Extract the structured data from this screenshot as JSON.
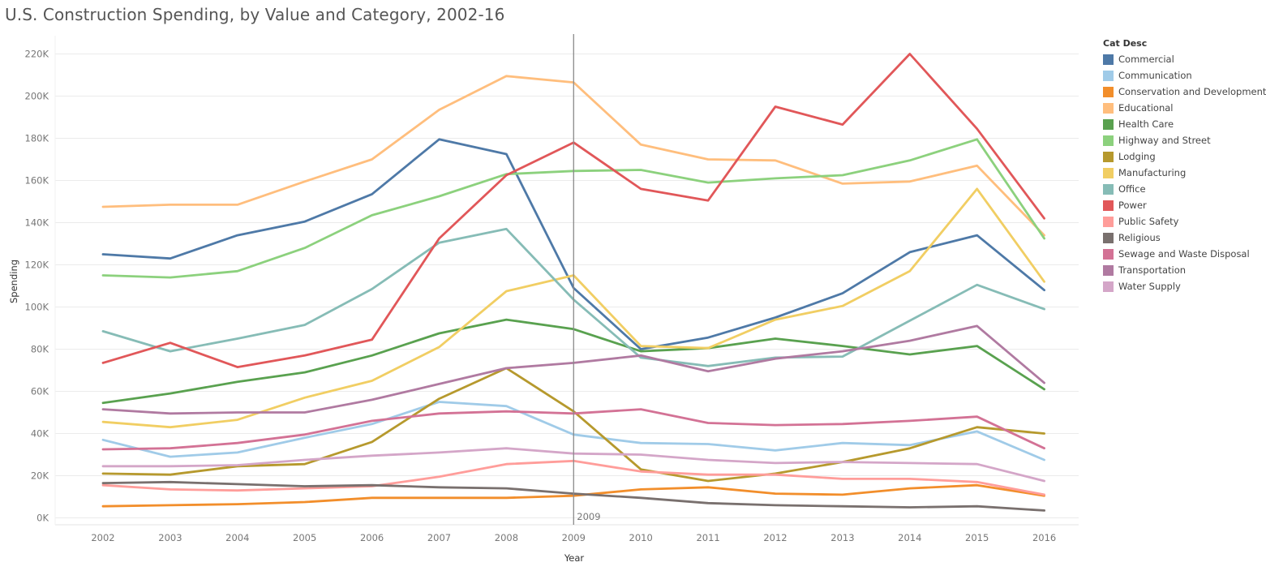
{
  "chart_data": {
    "type": "line",
    "title": "U.S. Construction Spending, by Value and Category, 2002-16",
    "xlabel": "Year",
    "ylabel": "Spending",
    "ylim": [
      0,
      230000
    ],
    "yticks": [
      0,
      20000,
      40000,
      60000,
      80000,
      100000,
      120000,
      140000,
      160000,
      180000,
      200000,
      220000
    ],
    "ytick_labels": [
      "0K",
      "20K",
      "40K",
      "60K",
      "80K",
      "100K",
      "120K",
      "140K",
      "160K",
      "180K",
      "200K",
      "220K"
    ],
    "x": [
      "2002",
      "2003",
      "2004",
      "2005",
      "2006",
      "2007",
      "2008",
      "2009",
      "2010",
      "2011",
      "2012",
      "2013",
      "2014",
      "2015",
      "2016"
    ],
    "grid": "horizontal",
    "legend_title": "Cat Desc",
    "legend_position": "right",
    "annotation": {
      "x": "2009",
      "label": "2009"
    },
    "series": [
      {
        "name": "Commercial",
        "color": "#4e79a7",
        "values": [
          125000,
          123000,
          134000,
          140500,
          153500,
          179500,
          172500,
          109000,
          80000,
          85500,
          95000,
          106500,
          126000,
          134000,
          108000
        ]
      },
      {
        "name": "Communication",
        "color": "#a0cbe8",
        "values": [
          37000,
          29000,
          31000,
          38000,
          44500,
          55000,
          53000,
          39500,
          35500,
          35000,
          32000,
          35500,
          34500,
          41000,
          27500
        ]
      },
      {
        "name": "Conservation and Development",
        "color": "#f28e2b",
        "values": [
          5500,
          6000,
          6500,
          7500,
          9500,
          9500,
          9500,
          10500,
          13500,
          14500,
          11500,
          11000,
          14000,
          15500,
          10500
        ]
      },
      {
        "name": "Educational",
        "color": "#ffbe7d",
        "values": [
          147500,
          148500,
          148500,
          159500,
          170000,
          193500,
          209500,
          206500,
          177000,
          170000,
          169500,
          158500,
          159500,
          167000,
          134000
        ]
      },
      {
        "name": "Health Care",
        "color": "#59a14f",
        "values": [
          54500,
          59000,
          64500,
          69000,
          77000,
          87500,
          94000,
          89500,
          79000,
          80500,
          85000,
          81500,
          77500,
          81500,
          61000
        ]
      },
      {
        "name": "Highway and Street",
        "color": "#8cd17d",
        "values": [
          115000,
          114000,
          117000,
          128000,
          143500,
          152500,
          163000,
          164500,
          165000,
          159000,
          161000,
          162500,
          169500,
          179500,
          132500
        ]
      },
      {
        "name": "Lodging",
        "color": "#b6992d",
        "values": [
          21000,
          20500,
          24500,
          25500,
          36000,
          56500,
          71000,
          50500,
          23000,
          17500,
          21000,
          26500,
          33000,
          43000,
          40000
        ]
      },
      {
        "name": "Manufacturing",
        "color": "#f1ce63",
        "values": [
          45500,
          43000,
          46500,
          57000,
          65000,
          81000,
          107500,
          115000,
          81500,
          80500,
          94000,
          100500,
          117000,
          156000,
          112000
        ]
      },
      {
        "name": "Office",
        "color": "#86bcb6",
        "values": [
          88500,
          79000,
          85000,
          91500,
          108500,
          130500,
          137000,
          103500,
          76000,
          72000,
          76000,
          76500,
          93500,
          110500,
          99000
        ]
      },
      {
        "name": "Power",
        "color": "#e15759",
        "values": [
          73500,
          83000,
          71500,
          77000,
          84500,
          132500,
          162500,
          178000,
          156000,
          150500,
          195000,
          186500,
          220000,
          184500,
          142000
        ]
      },
      {
        "name": "Public Safety",
        "color": "#ff9d9a",
        "values": [
          15500,
          13500,
          13000,
          14000,
          15000,
          19500,
          25500,
          27000,
          22000,
          20500,
          20500,
          18500,
          18500,
          17000,
          11000
        ]
      },
      {
        "name": "Religious",
        "color": "#79706e",
        "values": [
          16500,
          17000,
          16000,
          15000,
          15500,
          14500,
          14000,
          11500,
          9500,
          7000,
          6000,
          5500,
          5000,
          5500,
          3500
        ]
      },
      {
        "name": "Sewage and Waste Disposal",
        "color": "#d37295",
        "values": [
          32500,
          33000,
          35500,
          39500,
          46000,
          49500,
          50500,
          49500,
          51500,
          45000,
          44000,
          44500,
          46000,
          48000,
          33000
        ]
      },
      {
        "name": "Transportation",
        "color": "#b07aa1",
        "values": [
          51500,
          49500,
          50000,
          50000,
          56000,
          63500,
          71000,
          73500,
          77000,
          69500,
          75500,
          79000,
          84000,
          91000,
          64000
        ]
      },
      {
        "name": "Water Supply",
        "color": "#d4a6c8",
        "values": [
          24500,
          24500,
          25000,
          27500,
          29500,
          31000,
          33000,
          30500,
          30000,
          27500,
          26000,
          26500,
          26000,
          25500,
          17500
        ]
      }
    ]
  }
}
